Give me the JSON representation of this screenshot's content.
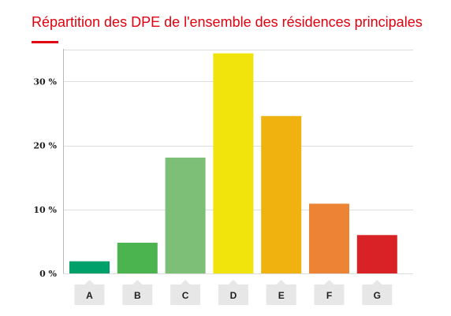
{
  "chart_data": {
    "type": "bar",
    "title": "Répartition des DPE de l'ensemble des résidences principales",
    "categories": [
      "A",
      "B",
      "C",
      "D",
      "E",
      "F",
      "G"
    ],
    "values": [
      1.9,
      4.8,
      18.1,
      34.4,
      24.6,
      10.9,
      6.0
    ],
    "colors": [
      "#00a06b",
      "#4cb44f",
      "#7dbf76",
      "#f1e40d",
      "#f0b20f",
      "#ec8335",
      "#d92225"
    ],
    "ylim": [
      0,
      35
    ],
    "yticks": [
      0,
      10,
      20,
      30
    ],
    "ytick_labels": [
      "0 %",
      "10 %",
      "20 %",
      "30 %"
    ],
    "xlabel": "",
    "ylabel": "",
    "grid": true,
    "legend": "none"
  }
}
